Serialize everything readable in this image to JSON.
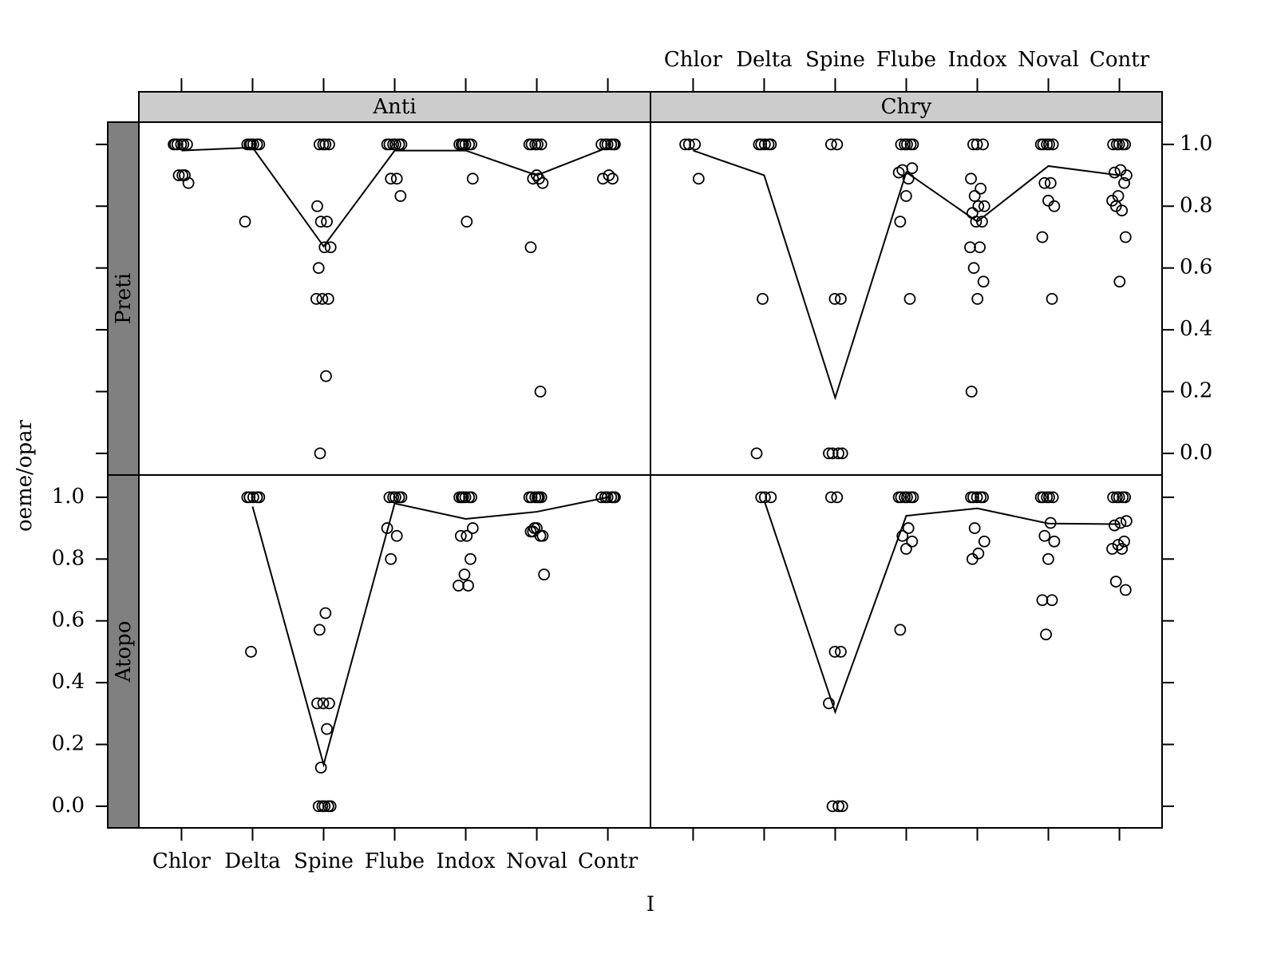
{
  "chart_data": {
    "type": "scatter",
    "xlabel": "I",
    "ylabel": "oeme/opar",
    "categories": [
      "Chlor",
      "Delta",
      "Spine",
      "Flube",
      "Indox",
      "Noval",
      "Contr"
    ],
    "columns": [
      "Anti",
      "Chry"
    ],
    "rows": [
      "Preti",
      "Atopo"
    ],
    "ylim": [
      -0.07,
      1.072
    ],
    "yticks": [
      {
        "value": 0,
        "label": "0.0"
      },
      0.2,
      0.4,
      0.6,
      0.8,
      {
        "value": 1,
        "label": "1.0"
      }
    ],
    "color": "#000000",
    "panels": [
      {
        "points": [
          [
            1,
            1,
            1,
            1,
            1,
            1,
            0.9,
            0.9,
            0.875,
            0.9
          ],
          [
            1,
            1,
            1,
            1,
            1,
            1,
            0.75
          ],
          [
            1,
            1,
            1,
            1,
            0.8,
            0.75,
            0.75,
            0.667,
            0.667,
            0.6,
            0.5,
            0.5,
            0.5,
            0.25,
            0
          ],
          [
            1,
            1,
            1,
            1,
            1,
            1,
            0.889,
            0.889,
            0.833
          ],
          [
            1,
            1,
            1,
            1,
            1,
            1,
            0.889,
            0.75
          ],
          [
            1,
            1,
            1,
            1,
            1,
            0.889,
            0.889,
            0.875,
            0.9,
            0.667,
            0.2
          ],
          [
            1,
            1,
            1,
            1,
            1,
            1,
            0.9,
            0.889,
            0.889
          ]
        ],
        "line": [
          0.98,
          0.99,
          0.67,
          0.98,
          0.98,
          0.9,
          0.99
        ]
      },
      {
        "points": [
          [
            1,
            1,
            1,
            0.889
          ],
          [
            1,
            1,
            1,
            1,
            1,
            0.5,
            0
          ],
          [
            1,
            1,
            0.5,
            0.5,
            0,
            0,
            0,
            0
          ],
          [
            1,
            1,
            1,
            1,
            1,
            0.909,
            0.889,
            0.917,
            0.923,
            0.833,
            0.75,
            0.5
          ],
          [
            1,
            1,
            1,
            0.889,
            0.857,
            0.833,
            0.8,
            0.8,
            0.778,
            0.75,
            0.75,
            0.667,
            0.667,
            0.6,
            0.556,
            0.5,
            0.2
          ],
          [
            1,
            1,
            1,
            1,
            1,
            0.875,
            0.875,
            0.8,
            0.818,
            0.7,
            0.5
          ],
          [
            1,
            1,
            1,
            1,
            1,
            0.9,
            0.917,
            0.909,
            0.875,
            0.833,
            0.818,
            0.786,
            0.8,
            0.7,
            0.556
          ]
        ],
        "line": [
          0.98,
          0.9,
          0.18,
          0.91,
          0.75,
          0.93,
          0.9
        ]
      },
      {
        "points": [
          [],
          [
            1,
            1,
            1,
            1,
            1,
            0.5
          ],
          [
            0.625,
            0.571,
            0.333,
            0.333,
            0.333,
            0.25,
            0.125,
            0,
            0,
            0,
            0,
            0
          ],
          [
            1,
            1,
            1,
            1,
            1,
            0.9,
            0.875,
            0.8
          ],
          [
            1,
            1,
            1,
            1,
            1,
            1,
            0.9,
            0.875,
            0.875,
            0.8,
            0.75,
            0.714,
            0.714
          ],
          [
            1,
            1,
            1,
            1,
            1,
            1,
            0.889,
            0.875,
            0.9,
            0.889,
            0.875,
            0.9,
            0.75
          ],
          [
            1,
            1,
            1,
            1,
            1,
            1
          ]
        ],
        "line": [
          null,
          0.97,
          0.135,
          0.98,
          0.93,
          0.953,
          1
        ]
      },
      {
        "points": [
          [],
          [
            1,
            1,
            1
          ],
          [
            1,
            1,
            0.5,
            0.5,
            0.333,
            0,
            0,
            0
          ],
          [
            1,
            1,
            1,
            1,
            1,
            1,
            0.9,
            0.875,
            0.857,
            0.833,
            0.571
          ],
          [
            1,
            1,
            1,
            1,
            1,
            0.9,
            0.857,
            0.818,
            0.8
          ],
          [
            1,
            1,
            1,
            1,
            1,
            0.917,
            0.875,
            0.857,
            0.8,
            0.667,
            0.667,
            0.556
          ],
          [
            1,
            1,
            1,
            1,
            1,
            0.923,
            0.917,
            0.909,
            0.857,
            0.846,
            0.833,
            0.833,
            0.727,
            0.7
          ]
        ],
        "line": [
          null,
          0.99,
          0.305,
          0.94,
          0.964,
          0.915,
          0.913
        ]
      }
    ]
  }
}
